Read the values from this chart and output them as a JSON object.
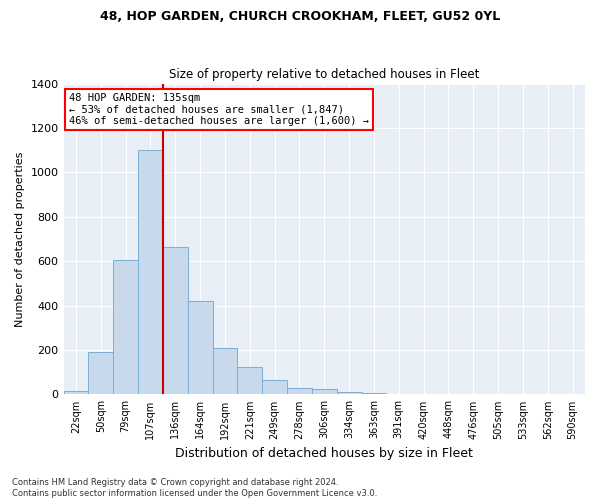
{
  "title1": "48, HOP GARDEN, CHURCH CROOKHAM, FLEET, GU52 0YL",
  "title2": "Size of property relative to detached houses in Fleet",
  "xlabel": "Distribution of detached houses by size in Fleet",
  "ylabel": "Number of detached properties",
  "footer": "Contains HM Land Registry data © Crown copyright and database right 2024.\nContains public sector information licensed under the Open Government Licence v3.0.",
  "annotation_title": "48 HOP GARDEN: 135sqm",
  "annotation_line1": "← 53% of detached houses are smaller (1,847)",
  "annotation_line2": "46% of semi-detached houses are larger (1,600) →",
  "bar_color": "#c9d9ec",
  "bar_edge_color": "#7bafd4",
  "red_line_color": "#cc0000",
  "background_color": "#e8eef5",
  "categories": [
    "22sqm",
    "50sqm",
    "79sqm",
    "107sqm",
    "136sqm",
    "164sqm",
    "192sqm",
    "221sqm",
    "249sqm",
    "278sqm",
    "306sqm",
    "334sqm",
    "363sqm",
    "391sqm",
    "420sqm",
    "448sqm",
    "476sqm",
    "505sqm",
    "533sqm",
    "562sqm",
    "590sqm"
  ],
  "values": [
    15,
    190,
    605,
    1100,
    665,
    420,
    210,
    125,
    65,
    30,
    25,
    12,
    5,
    3,
    2,
    1,
    0,
    0,
    0,
    0,
    0
  ],
  "red_line_x": 4.0,
  "ylim": [
    0,
    1400
  ],
  "yticks": [
    0,
    200,
    400,
    600,
    800,
    1000,
    1200,
    1400
  ],
  "figsize": [
    6.0,
    5.0
  ],
  "dpi": 100
}
